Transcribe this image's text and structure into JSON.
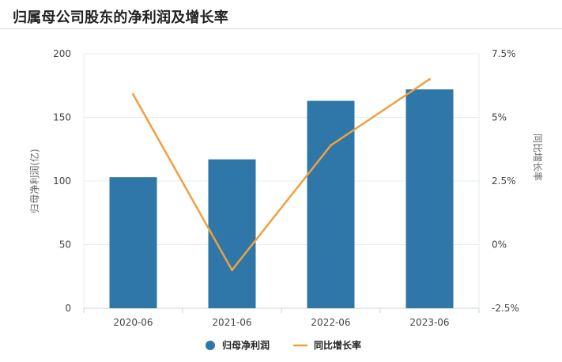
{
  "title": "归属母公司股东的净利润及增长率",
  "chart_data": {
    "type": "bar",
    "categories": [
      "2020-06",
      "2021-06",
      "2022-06",
      "2023-06"
    ],
    "series": [
      {
        "name": "归母净利润",
        "type": "bar",
        "axis": "left",
        "values": [
          103,
          117,
          163,
          172
        ],
        "color": "#2e77a8"
      },
      {
        "name": "同比增长率",
        "type": "line",
        "axis": "right",
        "values": [
          5.9,
          -1.0,
          3.9,
          6.5
        ],
        "color": "#f0a040"
      }
    ],
    "left_axis": {
      "label": "归母净利润(亿)",
      "ylim": [
        0,
        200
      ],
      "ticks": [
        "200",
        "150",
        "100",
        "50",
        "0"
      ]
    },
    "right_axis": {
      "label": "同比增长率",
      "ylim": [
        -2.5,
        7.5
      ],
      "ticks": [
        "7.5%",
        "5%",
        "2.5%",
        "0%",
        "-2.5%"
      ]
    },
    "legend_position": "bottom-center",
    "grid": true
  },
  "legend": {
    "bar_label": "归母净利润",
    "line_label": "同比增长率"
  }
}
